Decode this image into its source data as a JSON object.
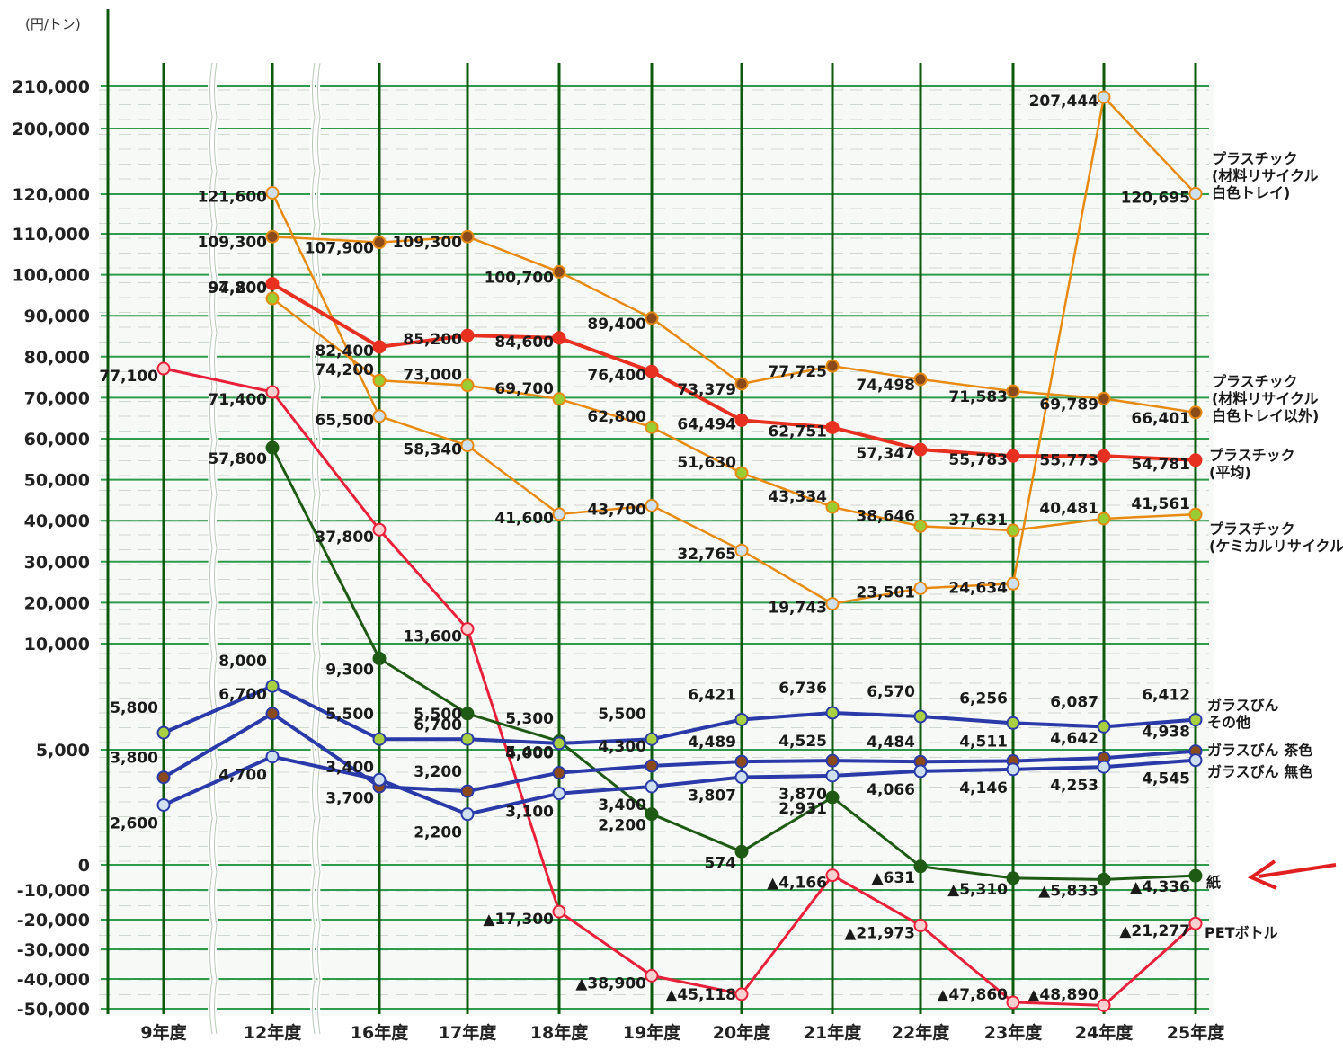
{
  "chart_data": {
    "type": "line",
    "y_unit": "(円/トン)",
    "categories": [
      "9年度",
      "12年度",
      "16年度",
      "17年度",
      "18年度",
      "19年度",
      "20年度",
      "21年度",
      "22年度",
      "23年度",
      "24年度",
      "25年度"
    ],
    "y_ticks": [
      "210,000",
      "200,000",
      "120,000",
      "110,000",
      "100,000",
      "90,000",
      "80,000",
      "70,000",
      "60,000",
      "50,000",
      "40,000",
      "30,000",
      "20,000",
      "10,000",
      "5,000",
      "0",
      "-10,000",
      "-20,000",
      "-30,000",
      "-40,000",
      "-50,000"
    ],
    "grid": true,
    "series": [
      {
        "name": "プラスチック (材料リサイクル 白色トレイ)",
        "color": "#e88a10",
        "marker": "#cfe0f0",
        "values": [
          null,
          121600,
          65500,
          58340,
          41600,
          43700,
          32765,
          19743,
          23501,
          24634,
          207444,
          120695
        ],
        "labels": [
          null,
          "121,600",
          "65,500",
          "58,340",
          "41,600",
          "43,700",
          "32,765",
          "19,743",
          "23,501",
          "24,634",
          "207,444",
          "120,695"
        ]
      },
      {
        "name": "プラスチック (材料リサイクル 白色トレイ以外)",
        "color": "#e88a10",
        "marker": "#8a4a1a",
        "values": [
          null,
          109300,
          107900,
          109300,
          100700,
          89400,
          73379,
          77725,
          74498,
          71583,
          69789,
          66401
        ],
        "labels": [
          null,
          "109,300",
          "107,900",
          "109,300",
          "100,700",
          "89,400",
          "73,379",
          "77,725",
          "74,498",
          "71,583",
          "69,789",
          "66,401"
        ]
      },
      {
        "name": "プラスチック (平均)",
        "color": "#e83020",
        "marker": "#e83020",
        "values": [
          null,
          97800,
          82400,
          85200,
          84600,
          76400,
          64494,
          62751,
          57347,
          55783,
          55773,
          54781
        ],
        "labels": [
          null,
          "97,800",
          "82,400",
          "85,200",
          "84,600",
          "76,400",
          "64,494",
          "62,751",
          "57,347",
          "55,783",
          "55,773",
          "54,781"
        ]
      },
      {
        "name": "プラスチック (ケミカルリサイクル)",
        "color": "#e88a10",
        "marker": "#9acd32",
        "values": [
          null,
          94200,
          74200,
          73000,
          69700,
          62800,
          51630,
          43334,
          38646,
          37631,
          40481,
          41561
        ],
        "labels": [
          null,
          "94,200",
          "74,200",
          "73,000",
          "69,700",
          "62,800",
          "51,630",
          "43,334",
          "38,646",
          "37,631",
          "40,481",
          "41,561"
        ]
      },
      {
        "name": "PETボトル",
        "color": "#e8203a",
        "marker": "#ffd0d0",
        "values": [
          77100,
          71400,
          37800,
          13600,
          -17300,
          -38900,
          -45118,
          -4166,
          -21973,
          -47860,
          -48890,
          -21277
        ],
        "labels": [
          "77,100",
          "71,400",
          "37,800",
          "13,600",
          "▲17,300",
          "▲38,900",
          "▲45,118",
          "▲4,166",
          "▲21,973",
          "▲47,860",
          "▲48,890",
          "▲21,277"
        ]
      },
      {
        "name": "紙",
        "color": "#1e5a14",
        "marker": "#1e5a14",
        "values": [
          null,
          57800,
          9300,
          6700,
          5400,
          2200,
          574,
          2931,
          -631,
          -5310,
          -5833,
          -4336
        ],
        "labels": [
          null,
          "57,800",
          "9,300",
          "6,700",
          "5,400",
          "2,200",
          "574",
          "2,931",
          "▲631",
          "▲5,310",
          "▲5,833",
          "▲4,336"
        ]
      },
      {
        "name": "ガラスびん その他",
        "color": "#2a3aa8",
        "marker": "#a8d040",
        "values": [
          5800,
          8000,
          5500,
          5500,
          5300,
          5500,
          6421,
          6736,
          6570,
          6256,
          6087,
          6412
        ],
        "labels": [
          "5,800",
          "8,000",
          "5,500",
          "5,500",
          "5,300",
          "5,500",
          "6,421",
          "6,736",
          "6,570",
          "6,256",
          "6,087",
          "6,412"
        ]
      },
      {
        "name": "ガラスびん 茶色",
        "color": "#2a3aa8",
        "marker": "#8a4a1a",
        "values": [
          3800,
          6700,
          3400,
          3200,
          4000,
          4300,
          4489,
          4525,
          4484,
          4511,
          4642,
          4938
        ],
        "labels": [
          "3,800",
          "6,700",
          "3,400",
          "3,200",
          "4,000",
          "4,300",
          "4,489",
          "4,525",
          "4,484",
          "4,511",
          "4,642",
          "4,938"
        ]
      },
      {
        "name": "ガラスびん 無色",
        "color": "#2a3aa8",
        "marker": "#cfe0f0",
        "values": [
          2600,
          4700,
          3700,
          2200,
          3100,
          3400,
          3807,
          3870,
          4066,
          4146,
          4253,
          4545
        ],
        "labels": [
          "2,600",
          "4,700",
          "3,700",
          "2,200",
          "3,100",
          "3,400",
          "3,807",
          "3,870",
          "4,066",
          "4,146",
          "4,253",
          "4,545"
        ]
      }
    ],
    "series_labels": [
      {
        "lines": [
          "プラスチック",
          "(材料リサイクル",
          "白色トレイ)"
        ]
      },
      {
        "lines": [
          "プラスチック",
          "(材料リサイクル",
          "白色トレイ以外)"
        ]
      },
      {
        "lines": [
          "プラスチック",
          "(平均)"
        ]
      },
      {
        "lines": [
          "プラスチック",
          "(ケミカルリサイクル)"
        ]
      },
      {
        "lines": [
          "ガラスびん",
          "その他"
        ]
      },
      {
        "lines": [
          "ガラスびん 茶色"
        ]
      },
      {
        "lines": [
          "ガラスびん 無色"
        ]
      },
      {
        "lines": [
          "紙"
        ]
      },
      {
        "lines": [
          "PETボトル"
        ]
      }
    ]
  }
}
